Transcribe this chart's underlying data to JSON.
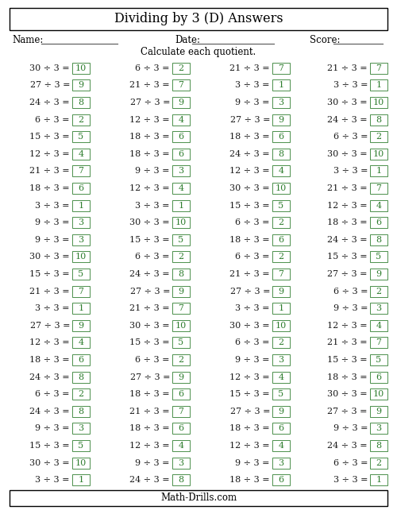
{
  "title": "Dividing by 3 (D) Answers",
  "subtitle": "Calculate each quotient.",
  "name_label": "Name:",
  "date_label": "Date:",
  "score_label": "Score:",
  "footer": "Math-Drills.com",
  "problem_color": "#1a1a1a",
  "answer_color": "#2e7d2e",
  "box_edge_color": "#2e7d2e",
  "background_color": "#ffffff",
  "columns": [
    [
      [
        30,
        3,
        10
      ],
      [
        27,
        3,
        9
      ],
      [
        24,
        3,
        8
      ],
      [
        6,
        3,
        2
      ],
      [
        15,
        3,
        5
      ],
      [
        12,
        3,
        4
      ],
      [
        21,
        3,
        7
      ],
      [
        18,
        3,
        6
      ],
      [
        3,
        3,
        1
      ],
      [
        9,
        3,
        3
      ],
      [
        9,
        3,
        3
      ],
      [
        30,
        3,
        10
      ],
      [
        15,
        3,
        5
      ],
      [
        21,
        3,
        7
      ],
      [
        3,
        3,
        1
      ],
      [
        27,
        3,
        9
      ],
      [
        12,
        3,
        4
      ],
      [
        18,
        3,
        6
      ],
      [
        24,
        3,
        8
      ],
      [
        6,
        3,
        2
      ],
      [
        24,
        3,
        8
      ],
      [
        9,
        3,
        3
      ],
      [
        15,
        3,
        5
      ],
      [
        30,
        3,
        10
      ],
      [
        3,
        3,
        1
      ]
    ],
    [
      [
        6,
        3,
        2
      ],
      [
        21,
        3,
        7
      ],
      [
        27,
        3,
        9
      ],
      [
        12,
        3,
        4
      ],
      [
        18,
        3,
        6
      ],
      [
        18,
        3,
        6
      ],
      [
        9,
        3,
        3
      ],
      [
        12,
        3,
        4
      ],
      [
        3,
        3,
        1
      ],
      [
        30,
        3,
        10
      ],
      [
        15,
        3,
        5
      ],
      [
        6,
        3,
        2
      ],
      [
        24,
        3,
        8
      ],
      [
        27,
        3,
        9
      ],
      [
        21,
        3,
        7
      ],
      [
        30,
        3,
        10
      ],
      [
        15,
        3,
        5
      ],
      [
        6,
        3,
        2
      ],
      [
        27,
        3,
        9
      ],
      [
        18,
        3,
        6
      ],
      [
        21,
        3,
        7
      ],
      [
        18,
        3,
        6
      ],
      [
        12,
        3,
        4
      ],
      [
        9,
        3,
        3
      ],
      [
        24,
        3,
        8
      ]
    ],
    [
      [
        21,
        3,
        7
      ],
      [
        3,
        3,
        1
      ],
      [
        9,
        3,
        3
      ],
      [
        27,
        3,
        9
      ],
      [
        18,
        3,
        6
      ],
      [
        24,
        3,
        8
      ],
      [
        12,
        3,
        4
      ],
      [
        30,
        3,
        10
      ],
      [
        15,
        3,
        5
      ],
      [
        6,
        3,
        2
      ],
      [
        18,
        3,
        6
      ],
      [
        6,
        3,
        2
      ],
      [
        21,
        3,
        7
      ],
      [
        27,
        3,
        9
      ],
      [
        3,
        3,
        1
      ],
      [
        30,
        3,
        10
      ],
      [
        6,
        3,
        2
      ],
      [
        9,
        3,
        3
      ],
      [
        12,
        3,
        4
      ],
      [
        15,
        3,
        5
      ],
      [
        27,
        3,
        9
      ],
      [
        18,
        3,
        6
      ],
      [
        12,
        3,
        4
      ],
      [
        9,
        3,
        3
      ],
      [
        18,
        3,
        6
      ]
    ],
    [
      [
        21,
        3,
        7
      ],
      [
        3,
        3,
        1
      ],
      [
        30,
        3,
        10
      ],
      [
        24,
        3,
        8
      ],
      [
        6,
        3,
        2
      ],
      [
        30,
        3,
        10
      ],
      [
        3,
        3,
        1
      ],
      [
        21,
        3,
        7
      ],
      [
        12,
        3,
        4
      ],
      [
        18,
        3,
        6
      ],
      [
        24,
        3,
        8
      ],
      [
        15,
        3,
        5
      ],
      [
        27,
        3,
        9
      ],
      [
        6,
        3,
        2
      ],
      [
        9,
        3,
        3
      ],
      [
        12,
        3,
        4
      ],
      [
        21,
        3,
        7
      ],
      [
        15,
        3,
        5
      ],
      [
        18,
        3,
        6
      ],
      [
        30,
        3,
        10
      ],
      [
        27,
        3,
        9
      ],
      [
        9,
        3,
        3
      ],
      [
        24,
        3,
        8
      ],
      [
        6,
        3,
        2
      ],
      [
        3,
        3,
        1
      ]
    ]
  ]
}
